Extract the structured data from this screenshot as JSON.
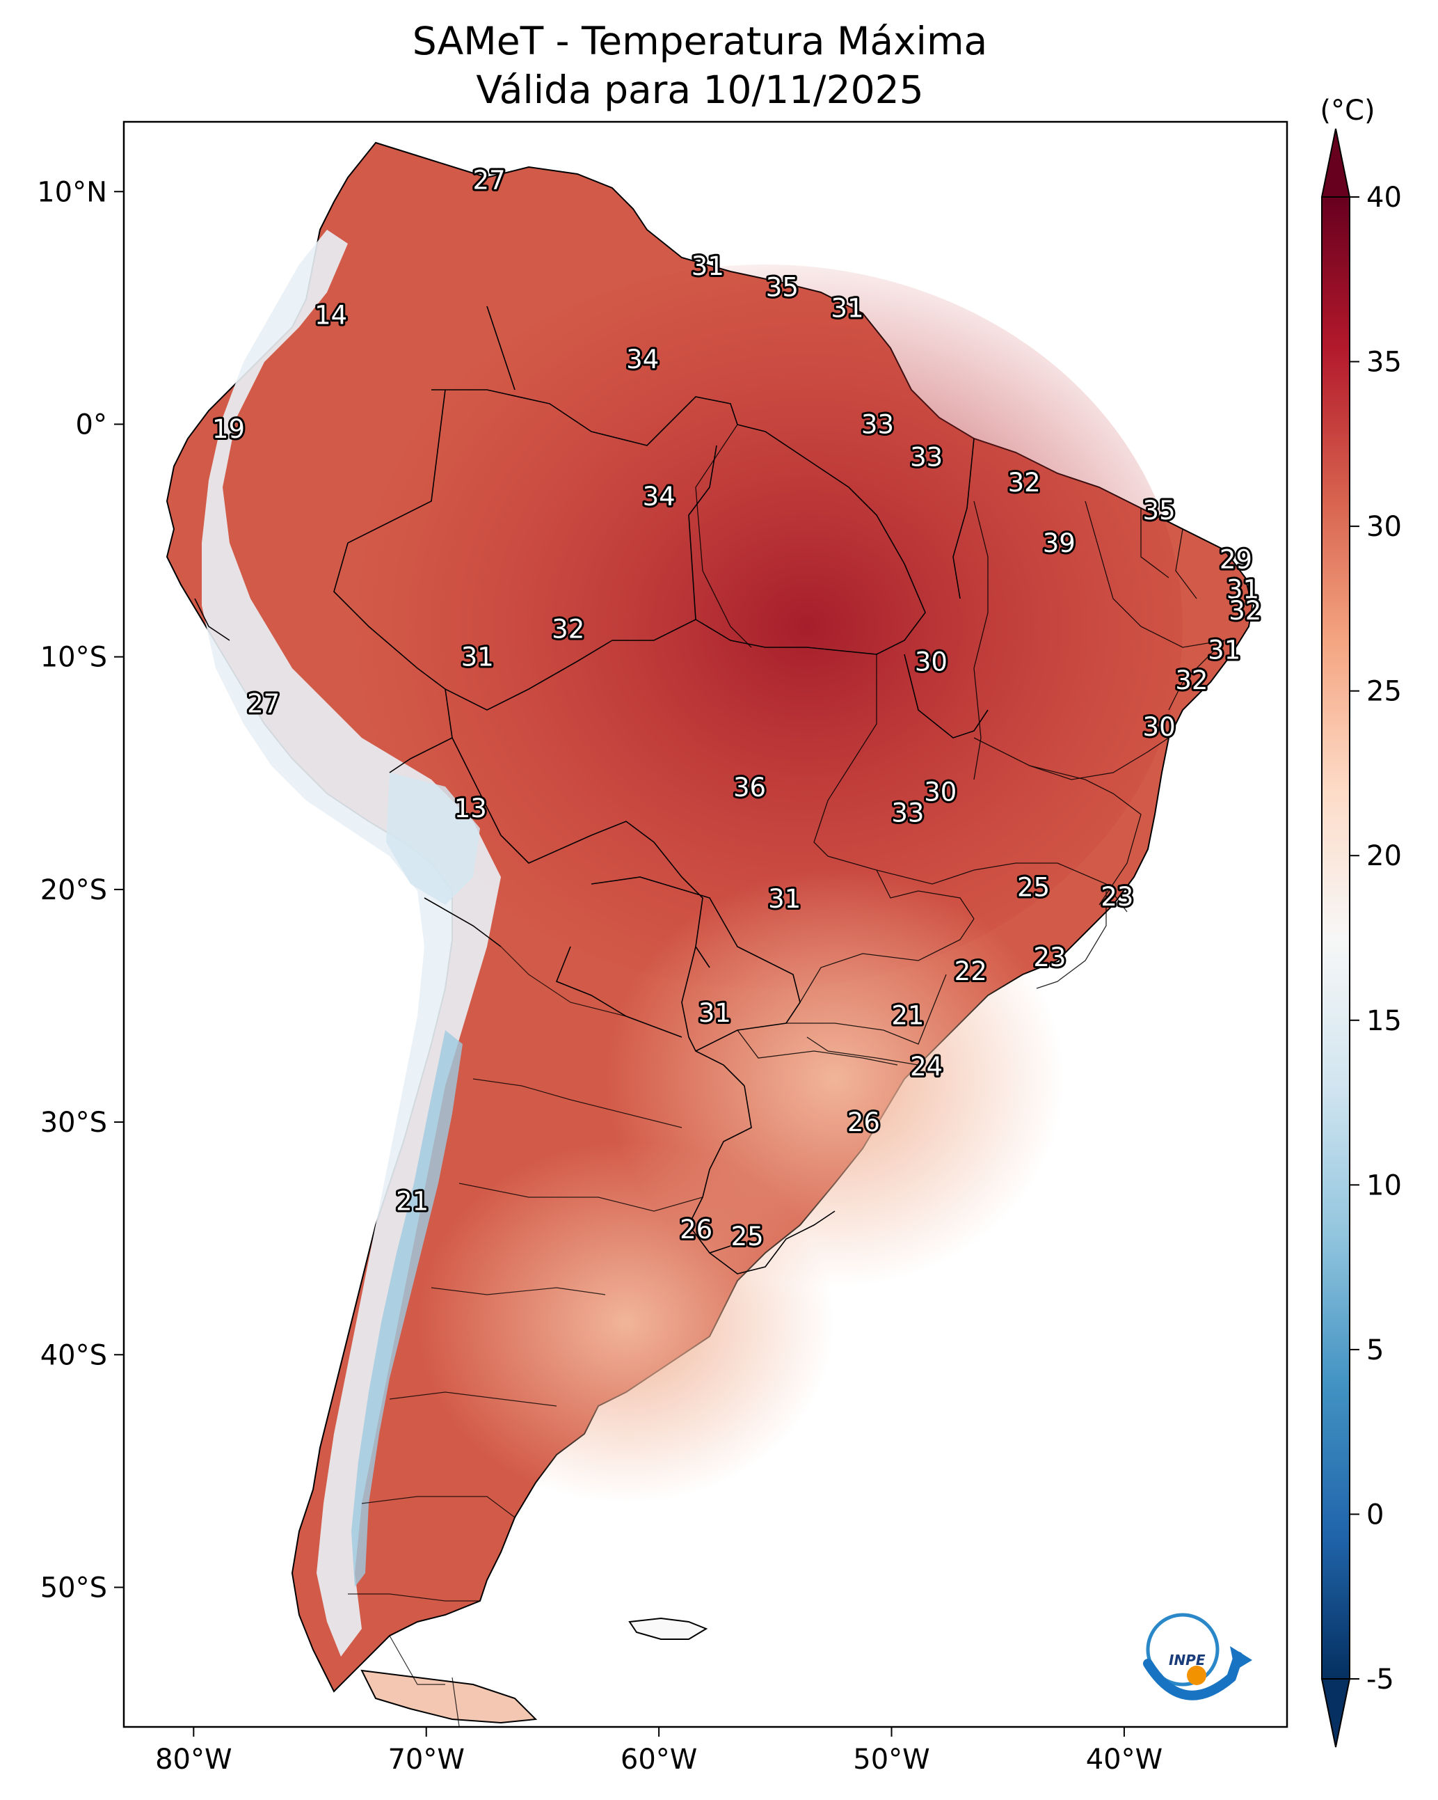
{
  "title": {
    "line1": "SAMeT - Temperatura Máxima",
    "line2": "Válida para 10/11/2025"
  },
  "colorbar": {
    "unit": "(°C)",
    "ticks": [
      "40",
      "35",
      "30",
      "25",
      "20",
      "15",
      "10",
      "5",
      "0",
      "-5"
    ],
    "tick_values": [
      40,
      35,
      30,
      25,
      20,
      15,
      10,
      5,
      0,
      -5
    ],
    "range": [
      -5,
      40
    ],
    "colors": [
      "#053061",
      "#2166ac",
      "#4393c3",
      "#92c5de",
      "#d1e5f0",
      "#f7f7f7",
      "#fddbc7",
      "#f4a582",
      "#d6604d",
      "#b2182b",
      "#67001f"
    ]
  },
  "axes": {
    "lon_labels": [
      "80°W",
      "70°W",
      "60°W",
      "50°W",
      "40°W"
    ],
    "lon_values": [
      -80,
      -70,
      -60,
      -50,
      -40
    ],
    "lat_labels": [
      "10°N",
      "0°",
      "10°S",
      "20°S",
      "30°S",
      "40°S",
      "50°S"
    ],
    "lat_values": [
      10,
      0,
      -10,
      -20,
      -30,
      -40,
      -50
    ],
    "extent": {
      "lon": [
        -83,
        -33
      ],
      "lat": [
        -56,
        13
      ]
    }
  },
  "stations": [
    {
      "label": "27",
      "lon": -67.3,
      "lat": 10.5
    },
    {
      "label": "31",
      "lon": -57.9,
      "lat": 6.8
    },
    {
      "label": "35",
      "lon": -54.7,
      "lat": 5.9
    },
    {
      "label": "31",
      "lon": -51.9,
      "lat": 5.0
    },
    {
      "label": "14",
      "lon": -74.1,
      "lat": 4.7
    },
    {
      "label": "34",
      "lon": -60.7,
      "lat": 2.8
    },
    {
      "label": "19",
      "lon": -78.5,
      "lat": -0.2
    },
    {
      "label": "33",
      "lon": -50.6,
      "lat": 0.0
    },
    {
      "label": "33",
      "lon": -48.5,
      "lat": -1.4
    },
    {
      "label": "32",
      "lon": -44.3,
      "lat": -2.5
    },
    {
      "label": "34",
      "lon": -60.0,
      "lat": -3.1
    },
    {
      "label": "35",
      "lon": -38.5,
      "lat": -3.7
    },
    {
      "label": "39",
      "lon": -42.8,
      "lat": -5.1
    },
    {
      "label": "29",
      "lon": -35.2,
      "lat": -5.8
    },
    {
      "label": "31",
      "lon": -34.9,
      "lat": -7.1
    },
    {
      "label": "32",
      "lon": -34.8,
      "lat": -8.0
    },
    {
      "label": "32",
      "lon": -63.9,
      "lat": -8.8
    },
    {
      "label": "31",
      "lon": -67.8,
      "lat": -10.0
    },
    {
      "label": "30",
      "lon": -48.3,
      "lat": -10.2
    },
    {
      "label": "31",
      "lon": -35.7,
      "lat": -9.7
    },
    {
      "label": "32",
      "lon": -37.1,
      "lat": -11.0
    },
    {
      "label": "27",
      "lon": -77.0,
      "lat": -12.0
    },
    {
      "label": "30",
      "lon": -38.5,
      "lat": -13.0
    },
    {
      "label": "36",
      "lon": -56.1,
      "lat": -15.6
    },
    {
      "label": "30",
      "lon": -47.9,
      "lat": -15.8
    },
    {
      "label": "33",
      "lon": -49.3,
      "lat": -16.7
    },
    {
      "label": "13",
      "lon": -68.1,
      "lat": -16.5
    },
    {
      "label": "25",
      "lon": -43.9,
      "lat": -19.9
    },
    {
      "label": "23",
      "lon": -40.3,
      "lat": -20.3
    },
    {
      "label": "31",
      "lon": -54.6,
      "lat": -20.4
    },
    {
      "label": "23",
      "lon": -43.2,
      "lat": -22.9
    },
    {
      "label": "22",
      "lon": -46.6,
      "lat": -23.5
    },
    {
      "label": "21",
      "lon": -49.3,
      "lat": -25.4
    },
    {
      "label": "31",
      "lon": -57.6,
      "lat": -25.3
    },
    {
      "label": "24",
      "lon": -48.5,
      "lat": -27.6
    },
    {
      "label": "26",
      "lon": -51.2,
      "lat": -30.0
    },
    {
      "label": "21",
      "lon": -70.6,
      "lat": -33.4
    },
    {
      "label": "26",
      "lon": -58.4,
      "lat": -34.6
    },
    {
      "label": "25",
      "lon": -56.2,
      "lat": -34.9
    }
  ],
  "logo": {
    "text": "INPE"
  }
}
